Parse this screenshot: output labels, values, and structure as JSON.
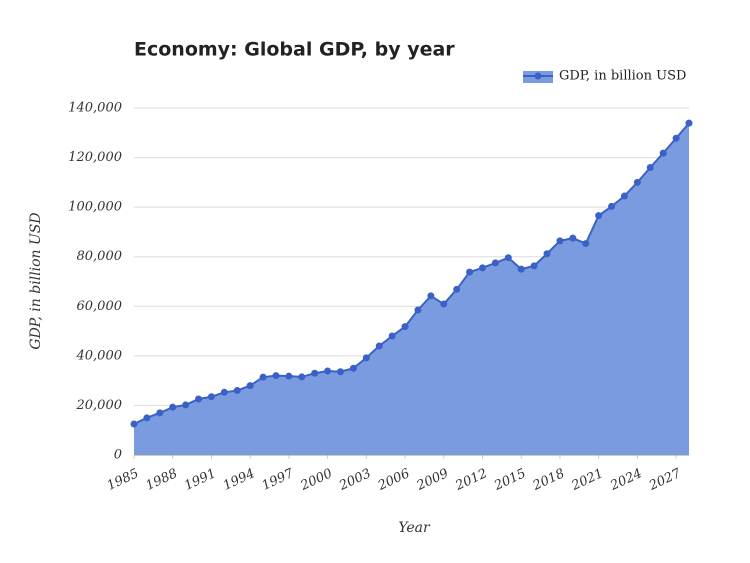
{
  "chart_data": {
    "type": "area",
    "title": "Economy: Global GDP, by year",
    "x_label": "Year",
    "y_label": "GDP, in billion USD",
    "x": [
      1985,
      1986,
      1987,
      1988,
      1989,
      1990,
      1991,
      1992,
      1993,
      1994,
      1995,
      1996,
      1997,
      1998,
      1999,
      2000,
      2001,
      2002,
      2003,
      2004,
      2005,
      2006,
      2007,
      2008,
      2009,
      2010,
      2011,
      2012,
      2013,
      2014,
      2015,
      2016,
      2017,
      2018,
      2019,
      2020,
      2021,
      2022,
      2023,
      2024,
      2025,
      2026,
      2027,
      2028
    ],
    "series": [
      {
        "name": "GDP, in billion USD",
        "color": "#3a62c6",
        "fill": "#7b9be0",
        "values": [
          12500,
          15000,
          17000,
          19300,
          20200,
          22600,
          23500,
          25300,
          26000,
          28000,
          31400,
          32000,
          31800,
          31500,
          33000,
          33900,
          33600,
          35000,
          39200,
          44000,
          48000,
          51800,
          58500,
          64200,
          60900,
          66800,
          73800,
          75500,
          77500,
          79600,
          75000,
          76300,
          81200,
          86400,
          87500,
          85300,
          96600,
          100300,
          104500,
          110000,
          116000,
          121800,
          127800,
          133900
        ]
      }
    ],
    "xlim": [
      1985,
      2028
    ],
    "xticks": [
      1985,
      1988,
      1991,
      1994,
      1997,
      2000,
      2003,
      2006,
      2009,
      2012,
      2015,
      2018,
      2021,
      2024,
      2027
    ],
    "ylim": [
      0,
      140000
    ],
    "yticks": [
      0,
      {
        "value": 20000,
        "label": "20,000"
      },
      {
        "value": 40000,
        "label": "40,000"
      },
      {
        "value": 60000,
        "label": "60,000"
      },
      {
        "value": 80000,
        "label": "80,000"
      },
      {
        "value": 100000,
        "label": "100,000"
      },
      {
        "value": 120000,
        "label": "120,000"
      },
      {
        "value": 140000,
        "label": "140,000"
      }
    ],
    "grid": true,
    "legend": "top-right"
  }
}
